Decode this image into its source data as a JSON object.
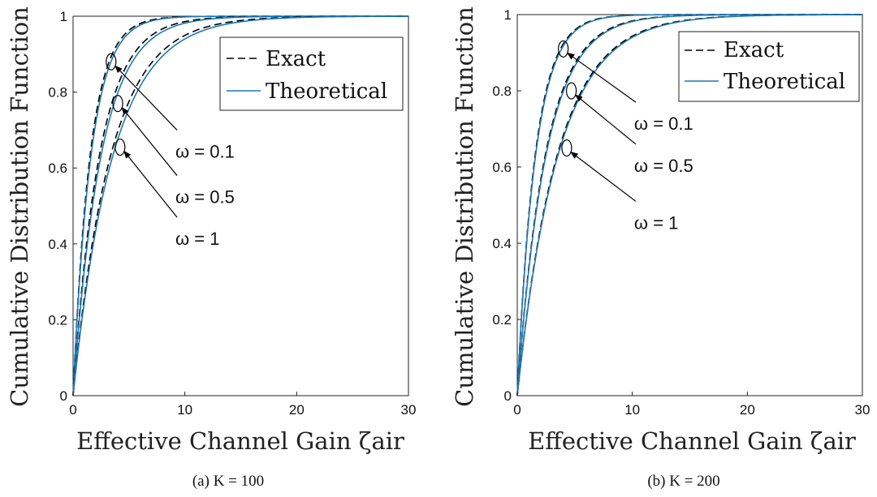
{
  "chart_data": [
    {
      "type": "line",
      "caption": "(a)  K = 100",
      "xlabel": "Effective Channel Gain ζair",
      "ylabel": "Cumulative Distribution Function",
      "xlim": [
        0,
        30
      ],
      "ylim": [
        0,
        1
      ],
      "xticks": [
        "0",
        "10",
        "20",
        "30"
      ],
      "yticks": [
        "0",
        "0.2",
        "0.4",
        "0.6",
        "0.8",
        "1"
      ],
      "grid": false,
      "legend": {
        "placement": "top-right",
        "entries": [
          "Exact",
          "Theoretical"
        ]
      },
      "series_style": {
        "Exact": {
          "color": "#000000",
          "dash": "dashed"
        },
        "Theoretical": {
          "color": "#1f77b4",
          "dash": "solid"
        }
      },
      "curves": [
        {
          "omega": "ω = 0.1",
          "theoretical_scale": 1.6,
          "exact_scale": 1.52,
          "marker": {
            "x": 3.4,
            "y": 0.88
          },
          "label_anchor": {
            "x": 9.3,
            "y": 0.7
          }
        },
        {
          "omega": "ω = 0.5",
          "theoretical_scale": 2.5,
          "exact_scale": 2.35,
          "marker": {
            "x": 4.0,
            "y": 0.77
          },
          "label_anchor": {
            "x": 9.3,
            "y": 0.58
          }
        },
        {
          "omega": "ω = 1",
          "theoretical_scale": 3.55,
          "exact_scale": 3.35,
          "marker": {
            "x": 4.2,
            "y": 0.655
          },
          "label_anchor": {
            "x": 9.3,
            "y": 0.47
          }
        }
      ],
      "annotations": [
        "ω = 0.1",
        "ω = 0.5",
        "ω = 1"
      ]
    },
    {
      "type": "line",
      "caption": "(b)  K = 200",
      "xlabel": "Effective Channel Gain ζair",
      "ylabel": "Cumulative Distribution Function",
      "xlim": [
        0,
        30
      ],
      "ylim": [
        0,
        1
      ],
      "xticks": [
        "0",
        "10",
        "20",
        "30"
      ],
      "yticks": [
        "0",
        "0.2",
        "0.4",
        "0.6",
        "0.8",
        "1"
      ],
      "grid": false,
      "legend": {
        "placement": "top-right",
        "entries": [
          "Exact",
          "Theoretical"
        ]
      },
      "series_style": {
        "Exact": {
          "color": "#000000",
          "dash": "dashed"
        },
        "Theoretical": {
          "color": "#1f77b4",
          "dash": "solid"
        }
      },
      "curves": [
        {
          "omega": "ω = 0.1",
          "theoretical_scale": 1.6,
          "exact_scale": 1.56,
          "marker": {
            "x": 4.0,
            "y": 0.91
          },
          "label_anchor": {
            "x": 10.3,
            "y": 0.77
          }
        },
        {
          "omega": "ω = 0.5",
          "theoretical_scale": 2.5,
          "exact_scale": 2.44,
          "marker": {
            "x": 4.7,
            "y": 0.8
          },
          "label_anchor": {
            "x": 10.3,
            "y": 0.66
          }
        },
        {
          "omega": "ω = 1",
          "theoretical_scale": 3.55,
          "exact_scale": 3.48,
          "marker": {
            "x": 4.3,
            "y": 0.65
          },
          "label_anchor": {
            "x": 10.3,
            "y": 0.51
          }
        }
      ],
      "annotations": [
        "ω = 0.1",
        "ω = 0.5",
        "ω = 1"
      ]
    }
  ]
}
